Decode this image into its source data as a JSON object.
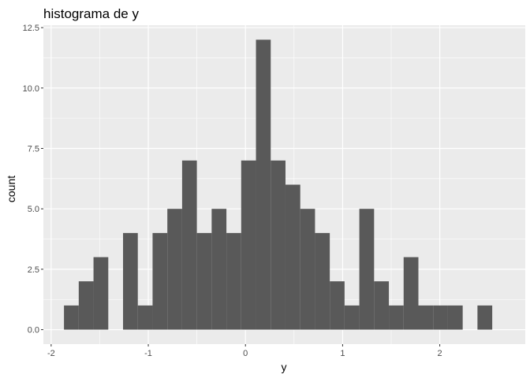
{
  "chart_data": {
    "type": "bar",
    "title": "histograma de y",
    "xlabel": "y",
    "ylabel": "count",
    "xlim": [
      -2.08,
      2.88
    ],
    "ylim": [
      -0.6,
      12.6
    ],
    "x_ticks": [
      -2,
      -1,
      0,
      1,
      2
    ],
    "x_tick_labels": [
      "-2",
      "-1",
      "0",
      "1",
      "2"
    ],
    "y_ticks": [
      0,
      2.5,
      5,
      7.5,
      10,
      12.5
    ],
    "y_tick_labels": [
      "0.0",
      "2.5",
      "5.0",
      "7.5",
      "10.0",
      "12.5"
    ],
    "bin_width": 0.152,
    "bin_centers": [
      -1.792,
      -1.64,
      -1.488,
      -1.336,
      -1.184,
      -1.032,
      -0.88,
      -0.728,
      -0.576,
      -0.424,
      -0.272,
      -0.12,
      0.032,
      0.184,
      0.336,
      0.488,
      0.64,
      0.792,
      0.944,
      1.096,
      1.248,
      1.4,
      1.552,
      1.704,
      1.856,
      2.008,
      2.16,
      2.312,
      2.464
    ],
    "counts": [
      1,
      2,
      3,
      0,
      4,
      1,
      4,
      5,
      7,
      4,
      5,
      4,
      7,
      12,
      7,
      6,
      5,
      4,
      2,
      1,
      5,
      2,
      1,
      3,
      1,
      1,
      1,
      0,
      1
    ],
    "grid": true,
    "bar_color": "#595959",
    "panel_background": "#ebebeb",
    "grid_color": "#ffffff"
  }
}
